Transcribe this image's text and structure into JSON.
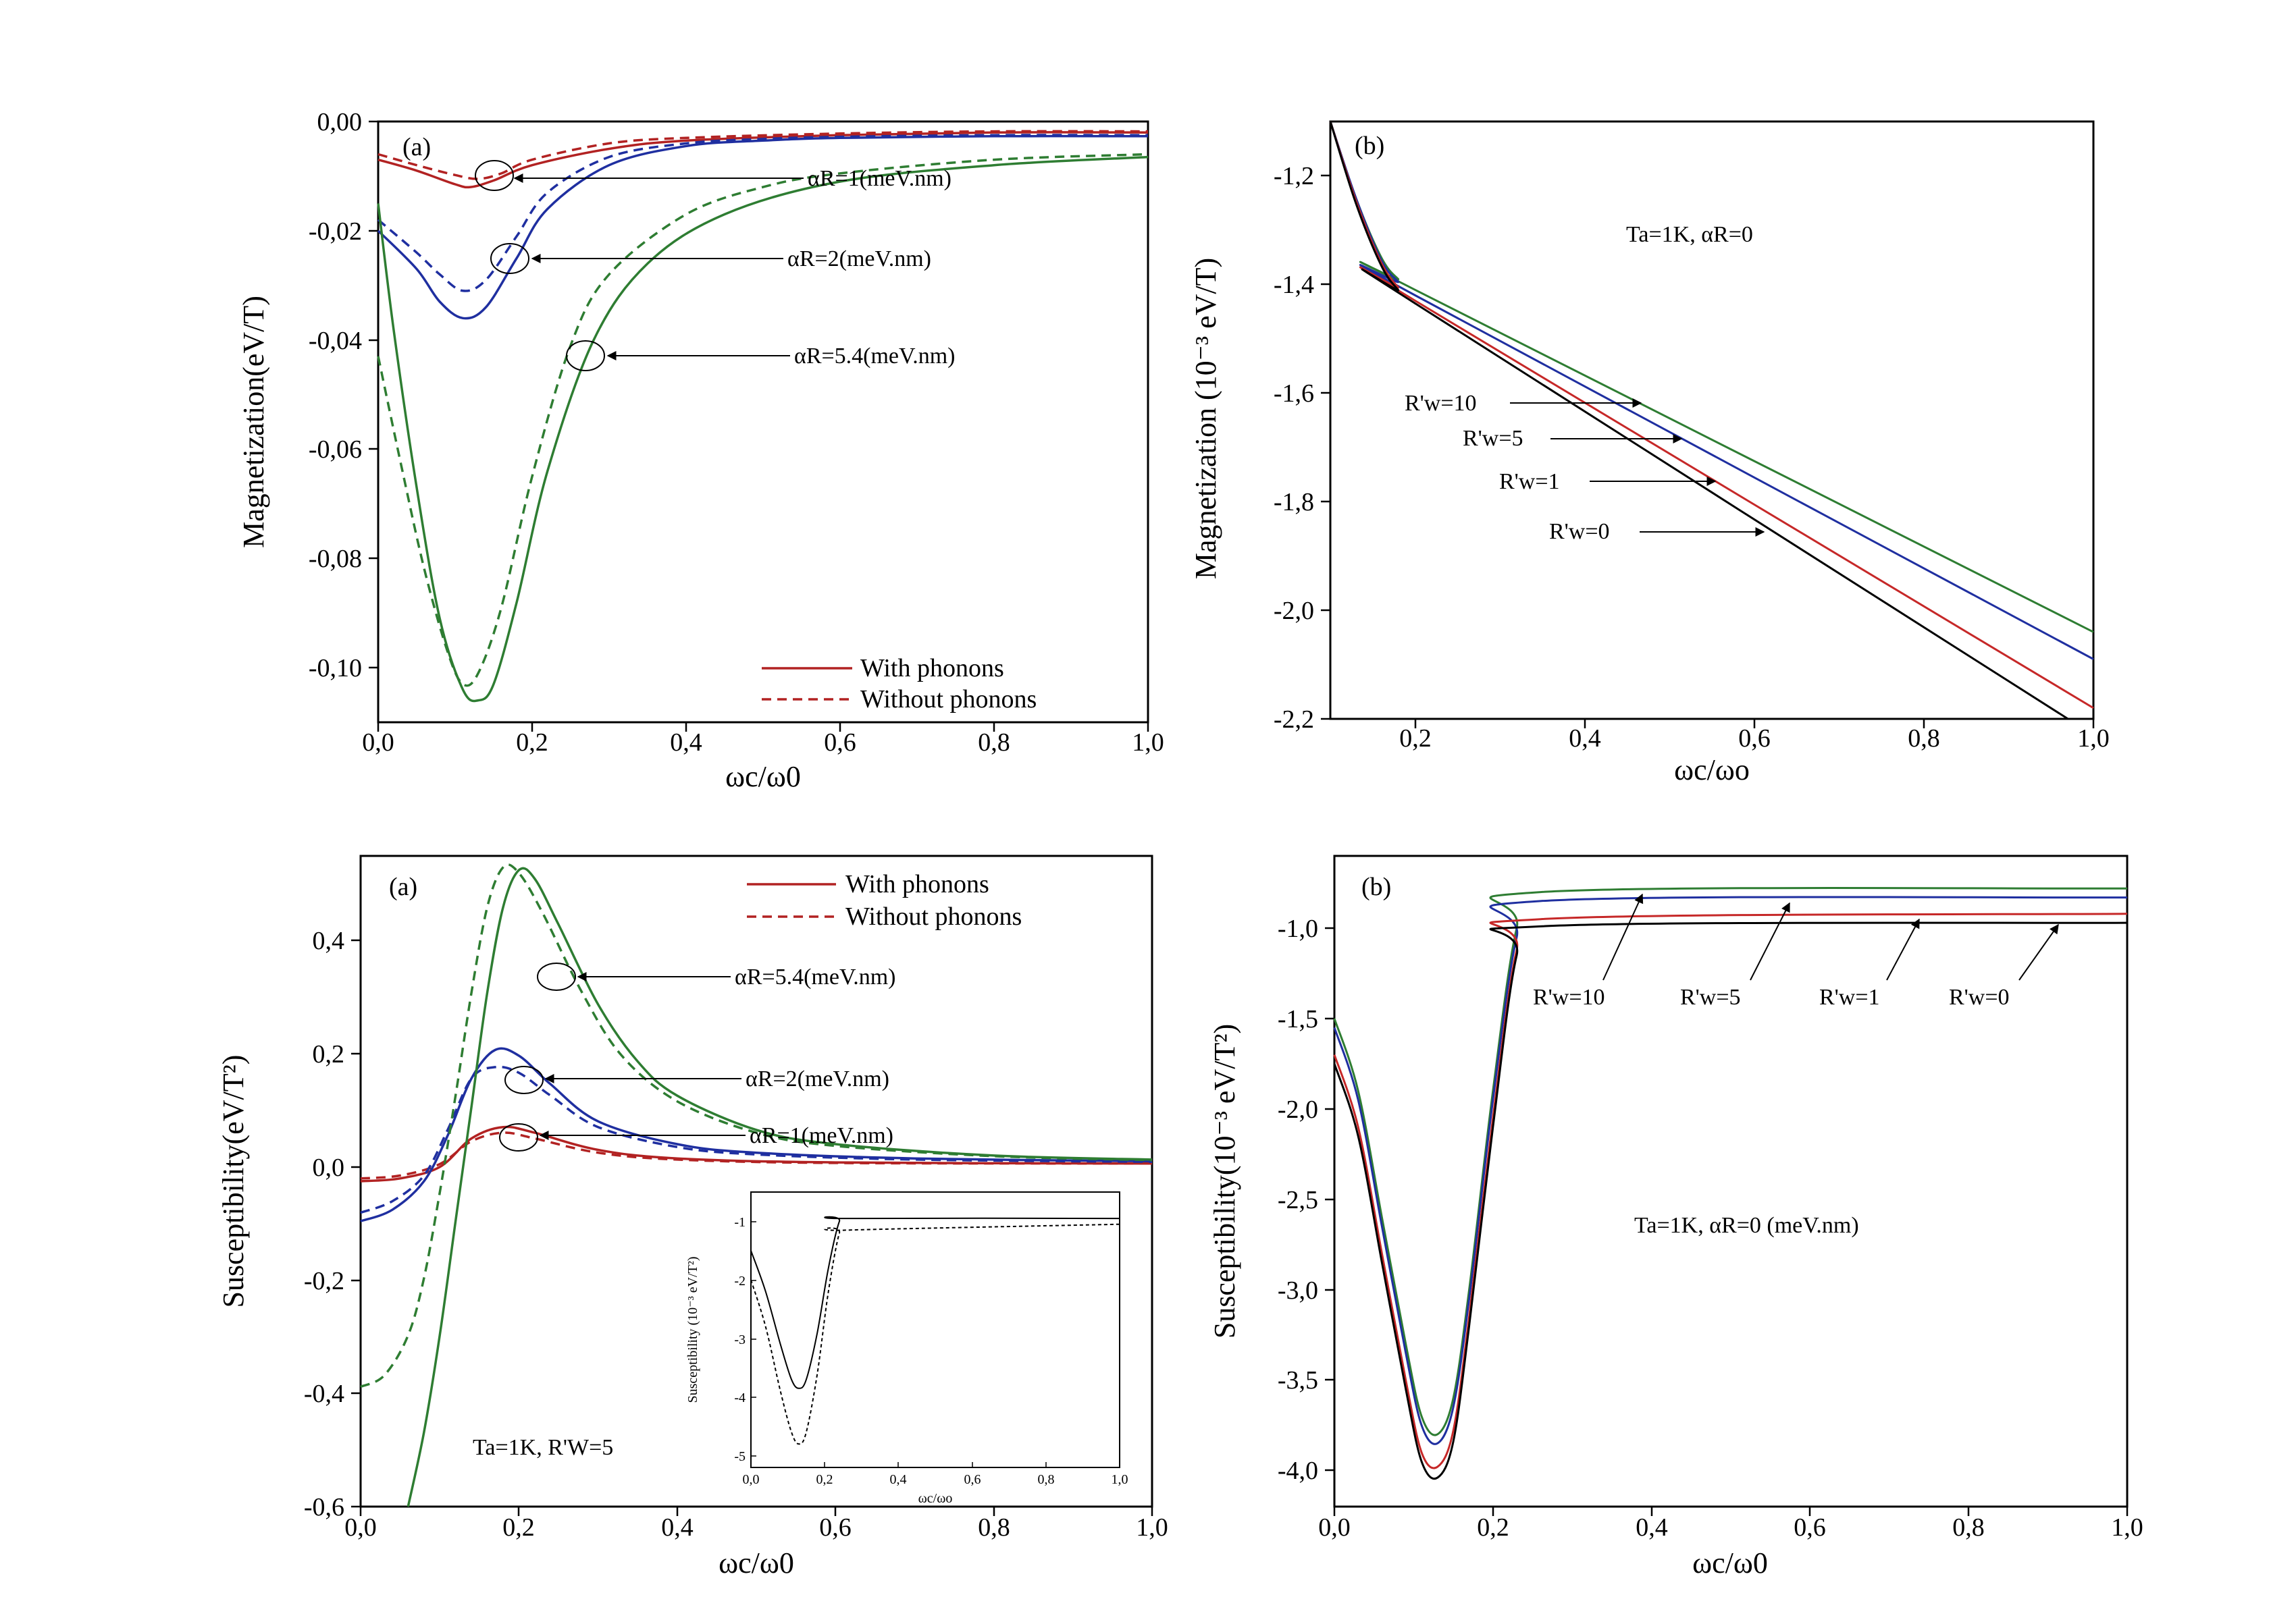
{
  "chart_data": [
    {
      "id": "p1",
      "type": "line",
      "panel_label": "(a)",
      "xlabel": "ωc/ω0",
      "ylabel": "Magnetization(eV/T)",
      "xlim": [
        0,
        1
      ],
      "ylim": [
        -0.11,
        0
      ],
      "xticks": [
        0,
        0.2,
        0.4,
        0.6,
        0.8,
        1.0
      ],
      "xtick_labels": [
        "0,0",
        "0,2",
        "0,4",
        "0,6",
        "0,8",
        "1,0"
      ],
      "yticks": [
        0,
        -0.02,
        -0.04,
        -0.06,
        -0.08,
        -0.1
      ],
      "ytick_labels": [
        "0,00",
        "-0,02",
        "-0,04",
        "-0,06",
        "-0,08",
        "-0,10"
      ],
      "legend": {
        "placement": "bottom-right",
        "entries": [
          {
            "label": "With phonons",
            "style": "solid",
            "color": "#b22222"
          },
          {
            "label": "Without phonons",
            "style": "dashed",
            "color": "#b22222"
          }
        ]
      },
      "series": [
        {
          "color": "#b22222",
          "style": "solid",
          "x": [
            0,
            0.05,
            0.1,
            0.12,
            0.15,
            0.2,
            0.3,
            0.4,
            0.6,
            0.8,
            1.0
          ],
          "y": [
            -0.007,
            -0.009,
            -0.0115,
            -0.012,
            -0.0108,
            -0.008,
            -0.005,
            -0.0035,
            -0.0025,
            -0.002,
            -0.002
          ]
        },
        {
          "color": "#b22222",
          "style": "dashed",
          "x": [
            0,
            0.05,
            0.1,
            0.13,
            0.16,
            0.2,
            0.3,
            0.4,
            0.6,
            0.8,
            1.0
          ],
          "y": [
            -0.006,
            -0.008,
            -0.0098,
            -0.0105,
            -0.0095,
            -0.007,
            -0.004,
            -0.003,
            -0.0022,
            -0.0018,
            -0.0018
          ]
        },
        {
          "color": "#1f2fa0",
          "style": "solid",
          "x": [
            0,
            0.05,
            0.08,
            0.11,
            0.14,
            0.18,
            0.22,
            0.3,
            0.4,
            0.5,
            0.6,
            0.8,
            1.0
          ],
          "y": [
            -0.02,
            -0.027,
            -0.033,
            -0.036,
            -0.034,
            -0.025,
            -0.016,
            -0.008,
            -0.0045,
            -0.0035,
            -0.003,
            -0.0027,
            -0.0027
          ]
        },
        {
          "color": "#1f2fa0",
          "style": "dashed",
          "x": [
            0,
            0.05,
            0.08,
            0.11,
            0.14,
            0.18,
            0.22,
            0.3,
            0.4,
            0.5,
            0.6,
            0.8,
            1.0
          ],
          "y": [
            -0.018,
            -0.024,
            -0.028,
            -0.031,
            -0.029,
            -0.021,
            -0.013,
            -0.0065,
            -0.004,
            -0.0032,
            -0.0028,
            -0.0025,
            -0.0025
          ]
        },
        {
          "color": "#2e7d32",
          "style": "solid",
          "x": [
            0,
            0.02,
            0.05,
            0.08,
            0.11,
            0.13,
            0.15,
            0.18,
            0.22,
            0.28,
            0.35,
            0.45,
            0.6,
            0.8,
            1.0
          ],
          "y": [
            -0.015,
            -0.038,
            -0.067,
            -0.091,
            -0.104,
            -0.106,
            -0.103,
            -0.088,
            -0.064,
            -0.04,
            -0.026,
            -0.017,
            -0.011,
            -0.008,
            -0.0065
          ]
        },
        {
          "color": "#2e7d32",
          "style": "dashed",
          "x": [
            0,
            0.03,
            0.06,
            0.09,
            0.11,
            0.13,
            0.16,
            0.2,
            0.25,
            0.3,
            0.4,
            0.5,
            0.6,
            0.8,
            1.0
          ],
          "y": [
            -0.043,
            -0.063,
            -0.082,
            -0.097,
            -0.103,
            -0.101,
            -0.089,
            -0.065,
            -0.041,
            -0.028,
            -0.017,
            -0.012,
            -0.0095,
            -0.007,
            -0.006
          ]
        }
      ],
      "annotations": [
        {
          "label": "αR=1(meV.nm)",
          "target": [
            0.15,
            -0.0105
          ],
          "at": [
            0.56,
            -0.0105
          ]
        },
        {
          "label": "αR=2(meV.nm)",
          "target": [
            0.17,
            -0.025
          ],
          "at": [
            0.53,
            -0.025
          ]
        },
        {
          "label": "αR=5.4(meV.nm)",
          "target": [
            0.27,
            -0.043
          ],
          "at": [
            0.54,
            -0.043
          ]
        }
      ]
    },
    {
      "id": "p2",
      "type": "line",
      "panel_label": "(b)",
      "xlabel": "ωc/ωo",
      "ylabel": "Magnetization (10⁻³ eV/T)",
      "xlim": [
        0.1,
        1
      ],
      "ylim": [
        -2.2,
        -1.1
      ],
      "xticks": [
        0.2,
        0.4,
        0.6,
        0.8,
        1.0
      ],
      "xtick_labels": [
        "0,2",
        "0,4",
        "0,6",
        "0,8",
        "1,0"
      ],
      "yticks": [
        -1.2,
        -1.4,
        -1.6,
        -1.8,
        -2.0,
        -2.2
      ],
      "ytick_labels": [
        "-1,2",
        "-1,4",
        "-1,6",
        "-1,8",
        "-2,0",
        "-2,2"
      ],
      "text": "Ta=1K, αR=0",
      "series": [
        {
          "name": "R'w=10",
          "color": "#2e7d32",
          "x": [
            0.1,
            0.13,
            0.16,
            0.18,
            0.2,
            1.0
          ],
          "y": [
            -1.1,
            -1.24,
            -1.35,
            -1.39,
            -1.41,
            -2.04
          ]
        },
        {
          "name": "R'w=5",
          "color": "#1f2fa0",
          "x": [
            0.1,
            0.13,
            0.16,
            0.18,
            0.2,
            1.0
          ],
          "y": [
            -1.1,
            -1.24,
            -1.355,
            -1.395,
            -1.42,
            -2.09
          ]
        },
        {
          "name": "R'w=1",
          "color": "#c62828",
          "x": [
            0.1,
            0.13,
            0.16,
            0.18,
            0.2,
            1.0
          ],
          "y": [
            -1.1,
            -1.245,
            -1.36,
            -1.405,
            -1.43,
            -2.18
          ]
        },
        {
          "name": "R'w=0",
          "color": "#000000",
          "x": [
            0.1,
            0.13,
            0.16,
            0.18,
            0.2,
            0.97
          ],
          "y": [
            -1.1,
            -1.25,
            -1.365,
            -1.41,
            -1.435,
            -2.2
          ]
        }
      ],
      "annotations": [
        {
          "label": "R'w=10",
          "target": [
            0.47,
            -1.625
          ],
          "at": [
            0.31,
            -1.625
          ]
        },
        {
          "label": "R'w=5",
          "target": [
            0.47,
            -1.69
          ],
          "at": [
            0.32,
            -1.69
          ]
        },
        {
          "label": "R'w=1",
          "target": [
            0.49,
            -1.77
          ],
          "at": [
            0.35,
            -1.77
          ]
        },
        {
          "label": "R'w=0",
          "target": [
            0.57,
            -1.86
          ],
          "at": [
            0.38,
            -1.86
          ]
        }
      ]
    },
    {
      "id": "p3",
      "type": "line",
      "panel_label": "(a)",
      "xlabel": "ωc/ω0",
      "ylabel": "Susceptibility(eV/T²)",
      "xlim": [
        0,
        1
      ],
      "ylim": [
        -0.6,
        0.54
      ],
      "xticks": [
        0,
        0.2,
        0.4,
        0.6,
        0.8,
        1.0
      ],
      "xtick_labels": [
        "0,0",
        "0,2",
        "0,4",
        "0,6",
        "0,8",
        "1,0"
      ],
      "yticks": [
        0.4,
        0.2,
        0,
        -0.2,
        -0.4,
        -0.6
      ],
      "ytick_labels": [
        "0,4",
        "0,2",
        "0,0",
        "-0,2",
        "-0,4",
        "-0,6"
      ],
      "text": "Ta=1K, R'W=5",
      "legend": {
        "placement": "top-right",
        "entries": [
          {
            "label": "With phonons",
            "style": "solid",
            "color": "#b22222"
          },
          {
            "label": "Without phonons",
            "style": "dashed",
            "color": "#b22222"
          }
        ]
      },
      "series": [
        {
          "color": "#b22222",
          "style": "solid",
          "x": [
            0,
            0.05,
            0.1,
            0.14,
            0.18,
            0.22,
            0.3,
            0.4,
            0.6,
            1.0
          ],
          "y": [
            -0.03,
            -0.025,
            -0.005,
            0.045,
            0.065,
            0.055,
            0.025,
            0.01,
            0.003,
            0.001
          ]
        },
        {
          "color": "#b22222",
          "style": "dashed",
          "x": [
            0,
            0.05,
            0.1,
            0.14,
            0.18,
            0.22,
            0.3,
            0.4,
            0.6,
            1.0
          ],
          "y": [
            -0.025,
            -0.02,
            0.0,
            0.04,
            0.055,
            0.045,
            0.02,
            0.008,
            0.002,
            0.001
          ]
        },
        {
          "color": "#1f2fa0",
          "style": "solid",
          "x": [
            0,
            0.04,
            0.08,
            0.11,
            0.14,
            0.17,
            0.2,
            0.24,
            0.3,
            0.4,
            0.5,
            0.7,
            1.0
          ],
          "y": [
            -0.1,
            -0.08,
            -0.03,
            0.05,
            0.15,
            0.2,
            0.19,
            0.14,
            0.075,
            0.035,
            0.02,
            0.01,
            0.005
          ]
        },
        {
          "color": "#1f2fa0",
          "style": "dashed",
          "x": [
            0,
            0.04,
            0.08,
            0.11,
            0.14,
            0.17,
            0.2,
            0.24,
            0.3,
            0.4,
            0.5,
            0.7,
            1.0
          ],
          "y": [
            -0.085,
            -0.065,
            -0.02,
            0.06,
            0.15,
            0.17,
            0.16,
            0.12,
            0.065,
            0.03,
            0.017,
            0.008,
            0.004
          ]
        },
        {
          "color": "#2e7d32",
          "style": "solid",
          "x": [
            0.06,
            0.08,
            0.1,
            0.12,
            0.14,
            0.16,
            0.18,
            0.2,
            0.22,
            0.25,
            0.3,
            0.35,
            0.4,
            0.5,
            0.6,
            0.8,
            1.0
          ],
          "y": [
            -0.6,
            -0.47,
            -0.3,
            -0.1,
            0.1,
            0.3,
            0.45,
            0.515,
            0.5,
            0.42,
            0.28,
            0.18,
            0.12,
            0.06,
            0.035,
            0.015,
            0.008
          ]
        },
        {
          "color": "#2e7d32",
          "style": "dashed",
          "x": [
            0,
            0.03,
            0.06,
            0.08,
            0.1,
            0.12,
            0.14,
            0.16,
            0.18,
            0.2,
            0.23,
            0.28,
            0.33,
            0.4,
            0.5,
            0.6,
            0.8,
            1.0
          ],
          "y": [
            -0.39,
            -0.37,
            -0.3,
            -0.2,
            -0.05,
            0.12,
            0.3,
            0.45,
            0.52,
            0.51,
            0.44,
            0.3,
            0.19,
            0.11,
            0.055,
            0.032,
            0.014,
            0.007
          ]
        }
      ],
      "annotations": [
        {
          "label": "αR=5.4(meV.nm)",
          "target": [
            0.25,
            0.335
          ],
          "at": [
            0.48,
            0.335
          ]
        },
        {
          "label": "αR=2(meV.nm)",
          "target": [
            0.2,
            0.155
          ],
          "at": [
            0.5,
            0.155
          ]
        },
        {
          "label": "αR=1(meV.nm)",
          "target": [
            0.2,
            0.055
          ],
          "at": [
            0.5,
            0.055
          ]
        }
      ],
      "inset": {
        "ylabel": "Susceptibility (10⁻³ eV/T²)",
        "xlabel": "ωc/ωo",
        "xlim": [
          0,
          1
        ],
        "ylim": [
          -5.2,
          -0.5
        ],
        "xticks": [
          0,
          0.2,
          0.4,
          0.6,
          0.8,
          1.0
        ],
        "xtick_labels": [
          "0,0",
          "0,2",
          "0,4",
          "0,6",
          "0,8",
          "1,0"
        ],
        "yticks": [
          -1,
          -2,
          -3,
          -4,
          -5
        ],
        "ytick_labels": [
          "-1",
          "-2",
          "-3",
          "-4",
          "-5"
        ],
        "series": [
          {
            "color": "#000000",
            "style": "solid",
            "x": [
              0,
              0.04,
              0.08,
              0.11,
              0.13,
              0.15,
              0.18,
              0.21,
              0.24,
              0.26,
              1.0
            ],
            "y": [
              -1.5,
              -2.2,
              -3.1,
              -3.7,
              -3.85,
              -3.7,
              -2.9,
              -1.8,
              -1.0,
              -0.95,
              -0.95
            ]
          },
          {
            "color": "#000000",
            "style": "dashed",
            "x": [
              0,
              0.04,
              0.08,
              0.11,
              0.13,
              0.15,
              0.18,
              0.21,
              0.24,
              0.26,
              1.0
            ],
            "y": [
              -2.0,
              -2.8,
              -3.9,
              -4.6,
              -4.8,
              -4.6,
              -3.6,
              -2.2,
              -1.2,
              -1.15,
              -1.05
            ]
          }
        ]
      }
    },
    {
      "id": "p4",
      "type": "line",
      "panel_label": "(b)",
      "xlabel": "ωc/ω0",
      "ylabel": "Susceptibility(10⁻³ eV/T²)",
      "xlim": [
        0,
        1
      ],
      "ylim": [
        -4.2,
        -0.6
      ],
      "xticks": [
        0,
        0.2,
        0.4,
        0.6,
        0.8,
        1.0
      ],
      "xtick_labels": [
        "0,0",
        "0,2",
        "0,4",
        "0,6",
        "0,8",
        "1,0"
      ],
      "yticks": [
        -1.0,
        -1.5,
        -2.0,
        -2.5,
        -3.0,
        -3.5,
        -4.0
      ],
      "ytick_labels": [
        "-1,0",
        "-1,5",
        "-2,0",
        "-2,5",
        "-3,0",
        "-3,5",
        "-4,0"
      ],
      "text": "Ta=1K, αR=0 (meV.nm)",
      "series": [
        {
          "name": "R'w=10",
          "color": "#2e7d32",
          "x": [
            0,
            0.03,
            0.06,
            0.09,
            0.11,
            0.13,
            0.15,
            0.17,
            0.2,
            0.23,
            0.26,
            1.0
          ],
          "y": [
            -1.5,
            -1.9,
            -2.6,
            -3.3,
            -3.7,
            -3.8,
            -3.6,
            -3.0,
            -1.9,
            -1.0,
            -0.8,
            -0.78
          ]
        },
        {
          "name": "R'w=5",
          "color": "#1f2fa0",
          "x": [
            0,
            0.03,
            0.06,
            0.09,
            0.11,
            0.13,
            0.15,
            0.17,
            0.2,
            0.23,
            0.26,
            1.0
          ],
          "y": [
            -1.55,
            -1.95,
            -2.65,
            -3.35,
            -3.75,
            -3.85,
            -3.65,
            -3.05,
            -1.95,
            -1.05,
            -0.85,
            -0.83
          ]
        },
        {
          "name": "R'w=1",
          "color": "#c62828",
          "x": [
            0,
            0.03,
            0.06,
            0.09,
            0.11,
            0.13,
            0.15,
            0.17,
            0.2,
            0.23,
            0.26,
            1.0
          ],
          "y": [
            -1.7,
            -2.1,
            -2.8,
            -3.5,
            -3.9,
            -3.98,
            -3.78,
            -3.15,
            -2.05,
            -1.12,
            -0.95,
            -0.92
          ]
        },
        {
          "name": "R'w=0",
          "color": "#000000",
          "x": [
            0,
            0.03,
            0.06,
            0.09,
            0.11,
            0.13,
            0.15,
            0.17,
            0.2,
            0.23,
            0.26,
            1.0
          ],
          "y": [
            -1.75,
            -2.15,
            -2.85,
            -3.55,
            -3.95,
            -4.04,
            -3.84,
            -3.2,
            -2.1,
            -1.15,
            -0.99,
            -0.97
          ]
        }
      ],
      "annotations": [
        {
          "label": "R'w=10",
          "target": [
            0.39,
            -0.8
          ],
          "at": [
            0.32,
            -1.28
          ]
        },
        {
          "label": "R'w=5",
          "target": [
            0.58,
            -0.85
          ],
          "at": [
            0.51,
            -1.28
          ]
        },
        {
          "label": "R'w=1",
          "target": [
            0.74,
            -0.94
          ],
          "at": [
            0.69,
            -1.28
          ]
        },
        {
          "label": "R'w=0",
          "target": [
            0.92,
            -0.97
          ],
          "at": [
            0.86,
            -1.28
          ]
        }
      ]
    }
  ]
}
